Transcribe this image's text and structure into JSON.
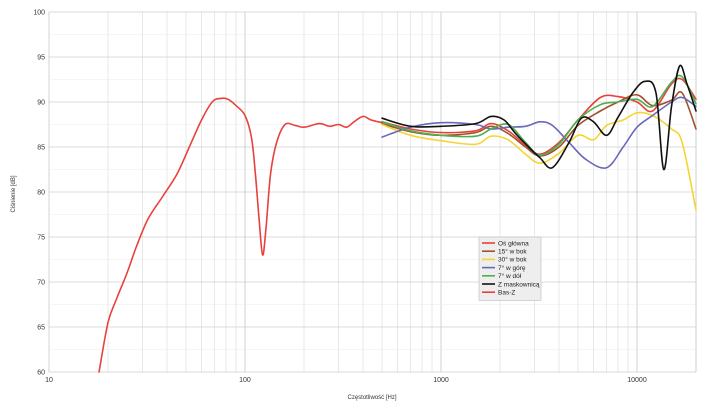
{
  "chart_data": {
    "type": "line",
    "title": "",
    "xlabel": "Częstotliwość [Hz]",
    "ylabel": "Ciśnienie [dB]",
    "x_scale": "log",
    "xlim": [
      10,
      20000
    ],
    "ylim": [
      60,
      100
    ],
    "x_ticks": [
      10,
      100,
      1000,
      10000
    ],
    "x_tick_labels": [
      "10",
      "100",
      "1000",
      "10000"
    ],
    "y_ticks": [
      60,
      65,
      70,
      75,
      80,
      85,
      90,
      95,
      100
    ],
    "y_tick_labels": [
      "60",
      "65",
      "70",
      "75",
      "80",
      "85",
      "90",
      "95",
      "100"
    ],
    "grid": true,
    "legend_position": "center-right",
    "series": [
      {
        "name": "Oś główna",
        "color": "#e8413c",
        "points": [
          [
            500,
            87.8
          ],
          [
            700,
            87.0
          ],
          [
            1000,
            86.6
          ],
          [
            1500,
            86.8
          ],
          [
            1800,
            87.6
          ],
          [
            2200,
            86.8
          ],
          [
            2700,
            85.2
          ],
          [
            3200,
            84.2
          ],
          [
            4000,
            85.5
          ],
          [
            5000,
            88.0
          ],
          [
            6500,
            90.5
          ],
          [
            8000,
            90.6
          ],
          [
            10000,
            90.0
          ],
          [
            12000,
            89.0
          ],
          [
            15000,
            92.0
          ],
          [
            17000,
            92.5
          ],
          [
            20000,
            90.3
          ]
        ]
      },
      {
        "name": "15° w bok",
        "color": "#a0522d",
        "points": [
          [
            500,
            87.6
          ],
          [
            700,
            86.7
          ],
          [
            1000,
            86.3
          ],
          [
            1500,
            86.6
          ],
          [
            1800,
            87.3
          ],
          [
            2200,
            86.5
          ],
          [
            2700,
            85.0
          ],
          [
            3200,
            84.0
          ],
          [
            4000,
            85.0
          ],
          [
            5000,
            87.4
          ],
          [
            6500,
            89.0
          ],
          [
            8000,
            90.0
          ],
          [
            10000,
            90.8
          ],
          [
            12000,
            89.6
          ],
          [
            15000,
            90.2
          ],
          [
            17000,
            91.0
          ],
          [
            20000,
            87.0
          ]
        ]
      },
      {
        "name": "30° w bok",
        "color": "#f5d433",
        "points": [
          [
            500,
            87.5
          ],
          [
            700,
            86.3
          ],
          [
            1000,
            85.7
          ],
          [
            1500,
            85.3
          ],
          [
            1800,
            86.2
          ],
          [
            2200,
            85.8
          ],
          [
            2700,
            84.2
          ],
          [
            3200,
            83.2
          ],
          [
            4000,
            84.3
          ],
          [
            5000,
            86.3
          ],
          [
            6000,
            85.8
          ],
          [
            7000,
            87.4
          ],
          [
            8500,
            88.0
          ],
          [
            10000,
            88.8
          ],
          [
            12000,
            88.5
          ],
          [
            15000,
            87.0
          ],
          [
            17000,
            85.5
          ],
          [
            20000,
            78.0
          ]
        ]
      },
      {
        "name": "7° w górę",
        "color": "#6a68b8",
        "points": [
          [
            500,
            86.1
          ],
          [
            700,
            87.2
          ],
          [
            1000,
            87.7
          ],
          [
            1500,
            87.5
          ],
          [
            1800,
            87.0
          ],
          [
            2200,
            87.2
          ],
          [
            2700,
            87.3
          ],
          [
            3200,
            87.8
          ],
          [
            3700,
            87.4
          ],
          [
            4500,
            85.5
          ],
          [
            5500,
            83.6
          ],
          [
            7000,
            82.7
          ],
          [
            8500,
            85.0
          ],
          [
            10000,
            87.2
          ],
          [
            12000,
            88.5
          ],
          [
            15000,
            90.0
          ],
          [
            17000,
            90.5
          ],
          [
            20000,
            89.5
          ]
        ]
      },
      {
        "name": "7° w dół",
        "color": "#4caf50",
        "points": [
          [
            500,
            87.8
          ],
          [
            700,
            86.8
          ],
          [
            1000,
            86.3
          ],
          [
            1500,
            86.2
          ],
          [
            1800,
            87.0
          ],
          [
            2200,
            87.5
          ],
          [
            2700,
            85.5
          ],
          [
            3200,
            84.1
          ],
          [
            4000,
            85.3
          ],
          [
            5000,
            88.0
          ],
          [
            6500,
            89.7
          ],
          [
            8000,
            90.0
          ],
          [
            10000,
            90.3
          ],
          [
            12000,
            89.5
          ],
          [
            15000,
            92.2
          ],
          [
            17000,
            92.8
          ],
          [
            20000,
            89.8
          ]
        ]
      },
      {
        "name": "Z maskownicą",
        "color": "#111111",
        "points": [
          [
            500,
            88.2
          ],
          [
            700,
            87.3
          ],
          [
            1000,
            87.3
          ],
          [
            1500,
            87.6
          ],
          [
            1800,
            88.4
          ],
          [
            2100,
            88.0
          ],
          [
            2400,
            86.5
          ],
          [
            2800,
            85.0
          ],
          [
            3200,
            83.8
          ],
          [
            3700,
            82.7
          ],
          [
            4500,
            85.5
          ],
          [
            5200,
            88.2
          ],
          [
            6000,
            87.8
          ],
          [
            7000,
            86.3
          ],
          [
            8000,
            88.3
          ],
          [
            9500,
            91.0
          ],
          [
            11000,
            92.3
          ],
          [
            12500,
            91.0
          ],
          [
            13700,
            82.5
          ],
          [
            15000,
            89.5
          ],
          [
            16500,
            94.0
          ],
          [
            18000,
            92.0
          ],
          [
            20000,
            89.0
          ]
        ]
      },
      {
        "name": "Bas-Z",
        "color": "#e8413c",
        "points": [
          [
            18,
            60
          ],
          [
            20,
            65.5
          ],
          [
            22,
            68
          ],
          [
            25,
            71
          ],
          [
            28,
            74
          ],
          [
            32,
            77
          ],
          [
            38,
            79.5
          ],
          [
            45,
            82
          ],
          [
            52,
            85
          ],
          [
            60,
            88
          ],
          [
            68,
            90
          ],
          [
            75,
            90.4
          ],
          [
            82,
            90.3
          ],
          [
            90,
            89.6
          ],
          [
            100,
            88.5
          ],
          [
            108,
            86
          ],
          [
            113,
            82
          ],
          [
            118,
            77
          ],
          [
            123,
            73
          ],
          [
            128,
            76
          ],
          [
            135,
            82
          ],
          [
            145,
            85.5
          ],
          [
            160,
            87.5
          ],
          [
            180,
            87.4
          ],
          [
            200,
            87.2
          ],
          [
            240,
            87.6
          ],
          [
            270,
            87.3
          ],
          [
            300,
            87.5
          ],
          [
            330,
            87.2
          ],
          [
            360,
            87.8
          ],
          [
            400,
            88.4
          ],
          [
            440,
            88.0
          ],
          [
            500,
            87.7
          ]
        ]
      }
    ]
  }
}
